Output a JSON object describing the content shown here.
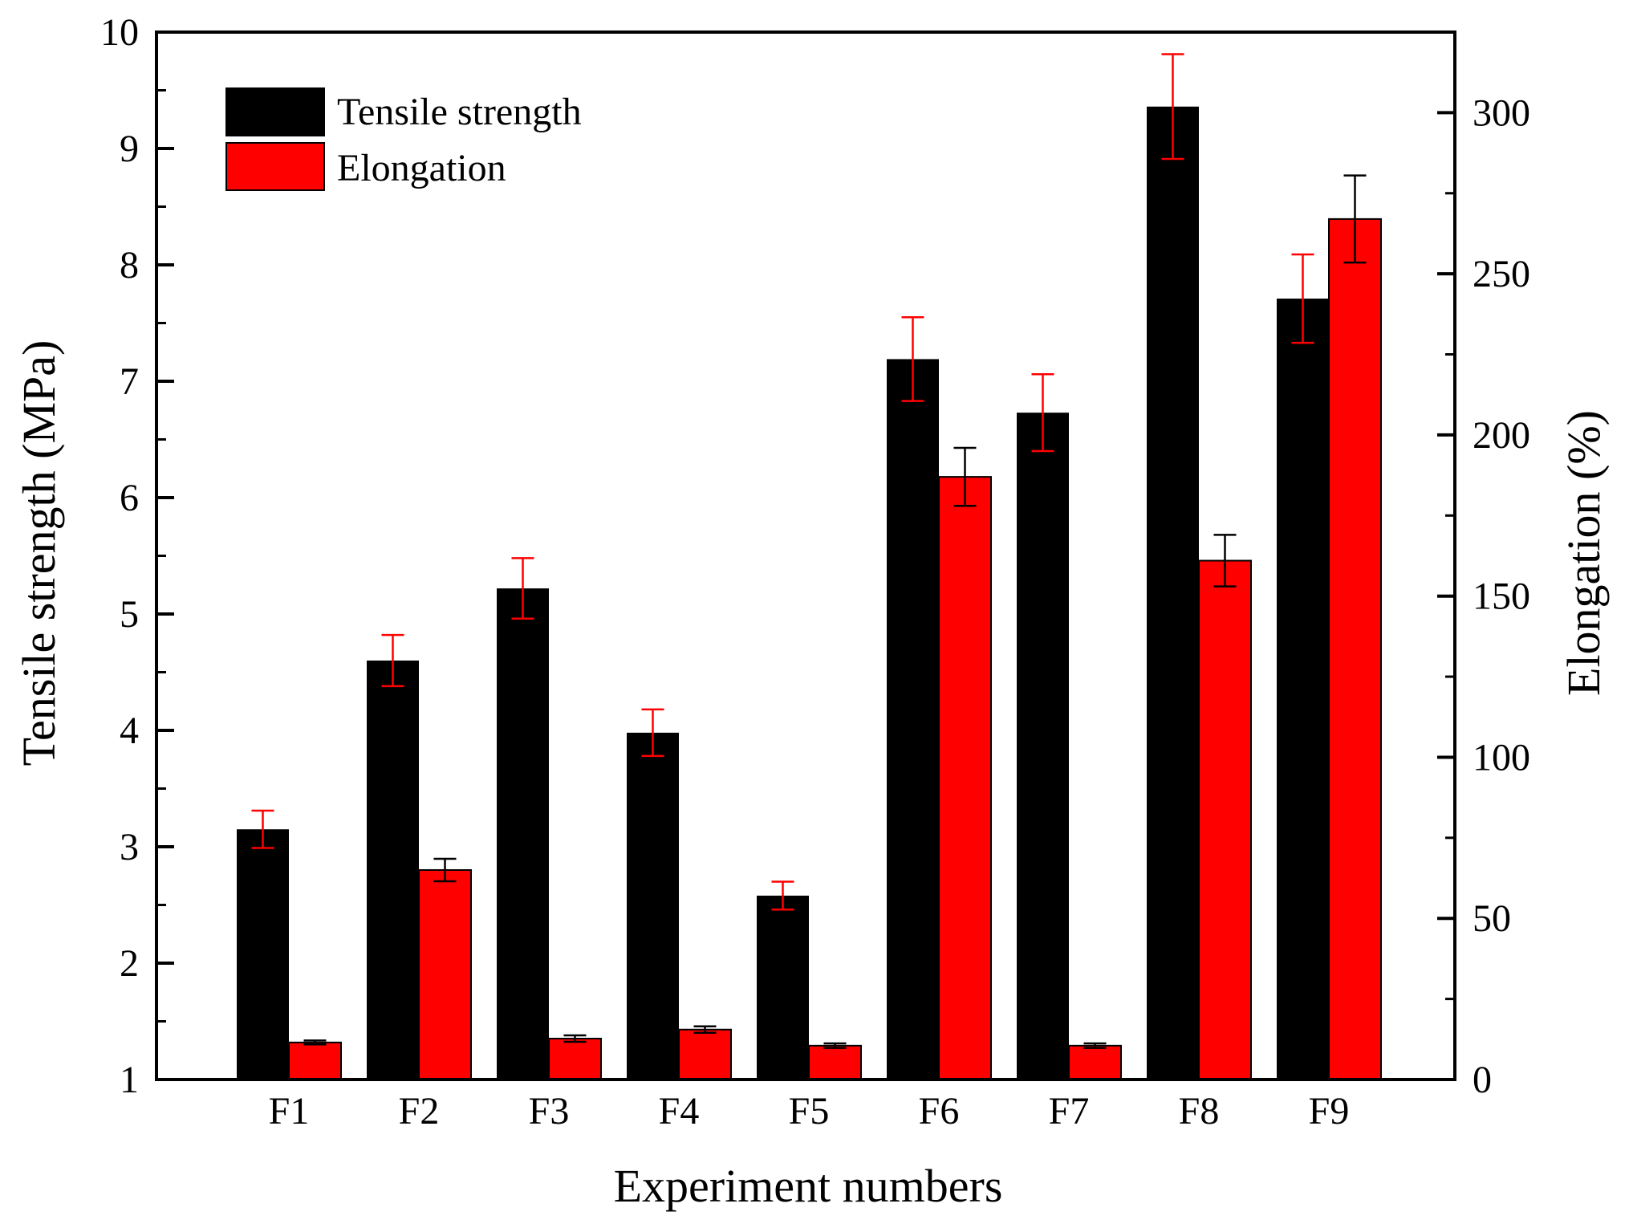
{
  "chart_data": {
    "type": "bar",
    "xlabel": "Experiment numbers",
    "ylabel": "Tensile strength (MPa)",
    "y2label": "Elongation (%)",
    "categories": [
      "F1",
      "F2",
      "F3",
      "F4",
      "F5",
      "F6",
      "F7",
      "F8",
      "F9"
    ],
    "ylim": [
      1,
      10
    ],
    "y2lim": [
      0,
      325
    ],
    "yticks": [
      1,
      2,
      3,
      4,
      5,
      6,
      7,
      8,
      9,
      10
    ],
    "y2ticks": [
      0,
      50,
      100,
      150,
      200,
      250,
      300
    ],
    "legend_position": "top-left",
    "series": [
      {
        "name": "Tensile strength",
        "axis": "left",
        "color": "#000000",
        "error_color": "#ff0000",
        "values": [
          3.15,
          4.6,
          5.22,
          3.98,
          2.58,
          7.19,
          6.73,
          9.36,
          7.71
        ],
        "errors": [
          0.16,
          0.22,
          0.26,
          0.2,
          0.12,
          0.36,
          0.33,
          0.45,
          0.38
        ]
      },
      {
        "name": "Elongation",
        "axis": "right",
        "color": "#ff0000",
        "error_color": "#000000",
        "values": [
          11.5,
          65,
          12.7,
          15.5,
          10.5,
          187,
          10.5,
          161,
          267
        ],
        "errors": [
          0.6,
          3.5,
          1,
          1,
          0.7,
          9,
          0.7,
          8,
          13.5
        ]
      }
    ]
  }
}
